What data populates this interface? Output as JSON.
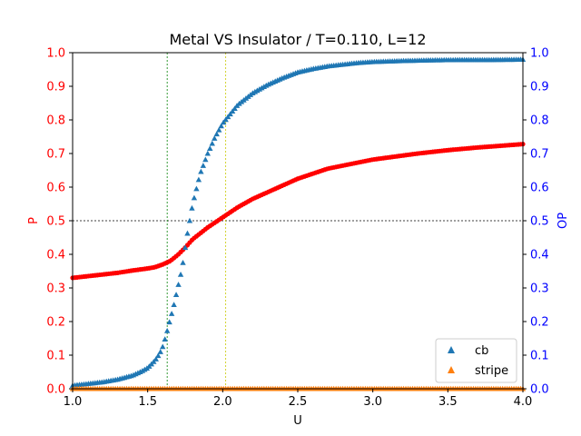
{
  "chart_data": {
    "type": "scatter",
    "title": "Metal VS Insulator / T=0.110, L=12",
    "xlabel": "U",
    "ylabel_left": "P",
    "ylabel_right": "OP",
    "xlim": [
      1.0,
      4.0
    ],
    "ylim_left": [
      0.0,
      1.0
    ],
    "ylim_right": [
      0.0,
      1.0
    ],
    "x_ticks": [
      "1.0",
      "1.5",
      "2.0",
      "2.5",
      "3.0",
      "3.5",
      "4.0"
    ],
    "y_ticks_left": [
      "0.0",
      "0.1",
      "0.2",
      "0.3",
      "0.4",
      "0.5",
      "0.6",
      "0.7",
      "0.8",
      "0.9",
      "1.0"
    ],
    "y_ticks_right": [
      "0.0",
      "0.1",
      "0.2",
      "0.3",
      "0.4",
      "0.5",
      "0.6",
      "0.7",
      "0.8",
      "0.9",
      "1.0"
    ],
    "left_axis_color": "#ff0000",
    "right_axis_color": "#0000ff",
    "reference_lines": {
      "horizontal_y": 0.5,
      "vertical_green_x": 1.63,
      "vertical_yellow_x": 2.02
    },
    "legend_position": "lower-right",
    "series": [
      {
        "name": "",
        "axis": "left",
        "marker": "circle",
        "color": "#ff0000",
        "x": [
          1.0,
          1.1,
          1.2,
          1.3,
          1.4,
          1.5,
          1.55,
          1.6,
          1.65,
          1.7,
          1.75,
          1.8,
          1.9,
          2.0,
          2.1,
          2.2,
          2.3,
          2.5,
          2.7,
          3.0,
          3.3,
          3.5,
          3.7,
          4.0
        ],
        "y": [
          0.33,
          0.335,
          0.34,
          0.345,
          0.352,
          0.358,
          0.362,
          0.37,
          0.38,
          0.398,
          0.42,
          0.445,
          0.48,
          0.51,
          0.54,
          0.565,
          0.585,
          0.625,
          0.655,
          0.682,
          0.7,
          0.71,
          0.718,
          0.728
        ]
      },
      {
        "name": "cb",
        "axis": "right",
        "marker": "triangle",
        "color": "#1f77b4",
        "x": [
          1.0,
          1.1,
          1.2,
          1.3,
          1.4,
          1.45,
          1.5,
          1.55,
          1.58,
          1.6,
          1.62,
          1.64,
          1.67,
          1.7,
          1.73,
          1.76,
          1.8,
          1.85,
          1.9,
          1.95,
          2.0,
          2.1,
          2.2,
          2.3,
          2.4,
          2.5,
          2.6,
          2.7,
          2.8,
          2.9,
          3.0,
          3.2,
          3.4,
          3.6,
          3.8,
          4.0
        ],
        "y": [
          0.01,
          0.015,
          0.02,
          0.028,
          0.04,
          0.05,
          0.062,
          0.085,
          0.105,
          0.125,
          0.155,
          0.19,
          0.24,
          0.3,
          0.36,
          0.45,
          0.55,
          0.64,
          0.7,
          0.75,
          0.79,
          0.845,
          0.88,
          0.905,
          0.925,
          0.942,
          0.952,
          0.96,
          0.965,
          0.97,
          0.973,
          0.976,
          0.978,
          0.979,
          0.979,
          0.98
        ]
      },
      {
        "name": "stripe",
        "axis": "right",
        "marker": "triangle",
        "color": "#ff7f0e",
        "x": [
          1.0,
          1.5,
          2.0,
          2.5,
          3.0,
          3.5,
          4.0
        ],
        "y": [
          0.0,
          0.0,
          0.0,
          0.0,
          0.0,
          0.0,
          0.0
        ]
      }
    ]
  }
}
